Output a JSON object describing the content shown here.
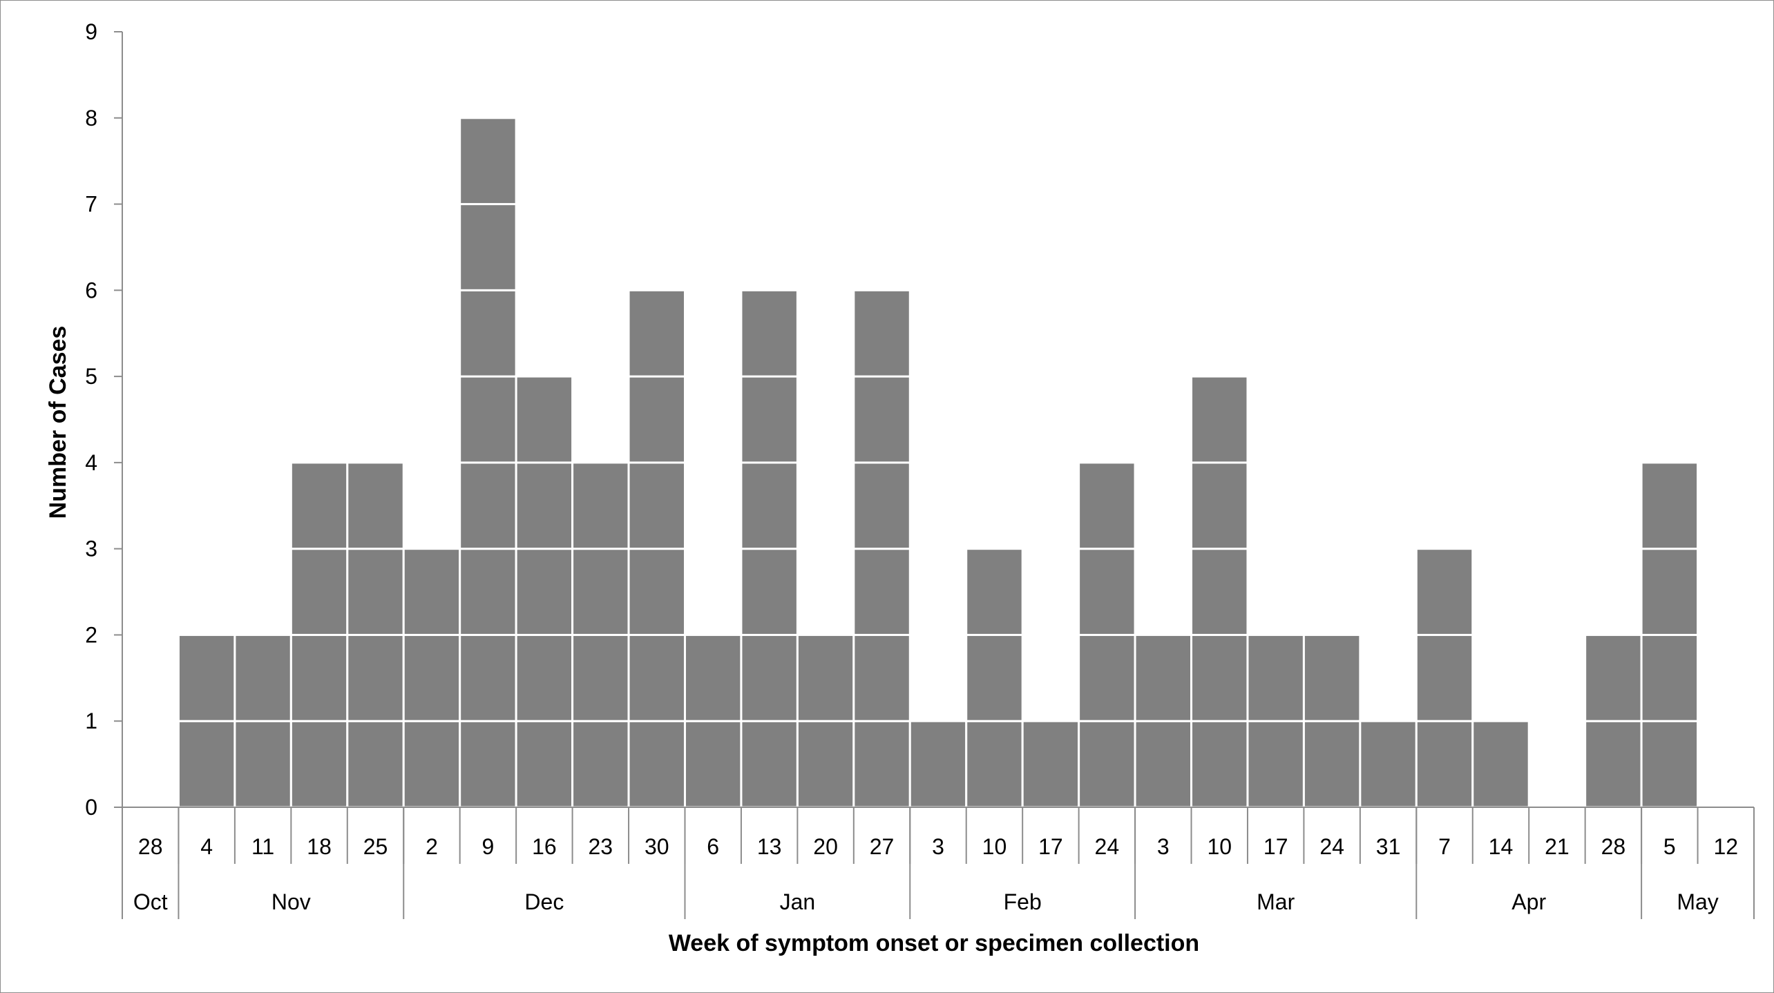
{
  "chart_data": {
    "type": "bar",
    "style": "stacked unit blocks (one block per case)",
    "bar_color": "#808080",
    "block_divider_color": "#ffffff",
    "xlabel": "Week of symptom onset or specimen collection",
    "ylabel": "Number of Cases",
    "ylim": [
      0,
      9
    ],
    "yticks": [
      0,
      1,
      2,
      3,
      4,
      5,
      6,
      7,
      8,
      9
    ],
    "grid": false,
    "legend": "none",
    "categories": [
      "28",
      "4",
      "11",
      "18",
      "25",
      "2",
      "9",
      "16",
      "23",
      "30",
      "6",
      "13",
      "20",
      "27",
      "3",
      "10",
      "17",
      "24",
      "3",
      "10",
      "17",
      "24",
      "31",
      "7",
      "14",
      "21",
      "28",
      "5",
      "12"
    ],
    "values": [
      0,
      2,
      2,
      4,
      4,
      3,
      8,
      5,
      4,
      6,
      2,
      6,
      2,
      6,
      1,
      3,
      1,
      4,
      2,
      5,
      2,
      2,
      1,
      3,
      1,
      0,
      2,
      4,
      0
    ],
    "month_groups": [
      {
        "label": "Oct",
        "count": 1
      },
      {
        "label": "Nov",
        "count": 4
      },
      {
        "label": "Dec",
        "count": 5
      },
      {
        "label": "Jan",
        "count": 4
      },
      {
        "label": "Feb",
        "count": 4
      },
      {
        "label": "Mar",
        "count": 5
      },
      {
        "label": "Apr",
        "count": 4
      },
      {
        "label": "May",
        "count": 2
      }
    ]
  }
}
